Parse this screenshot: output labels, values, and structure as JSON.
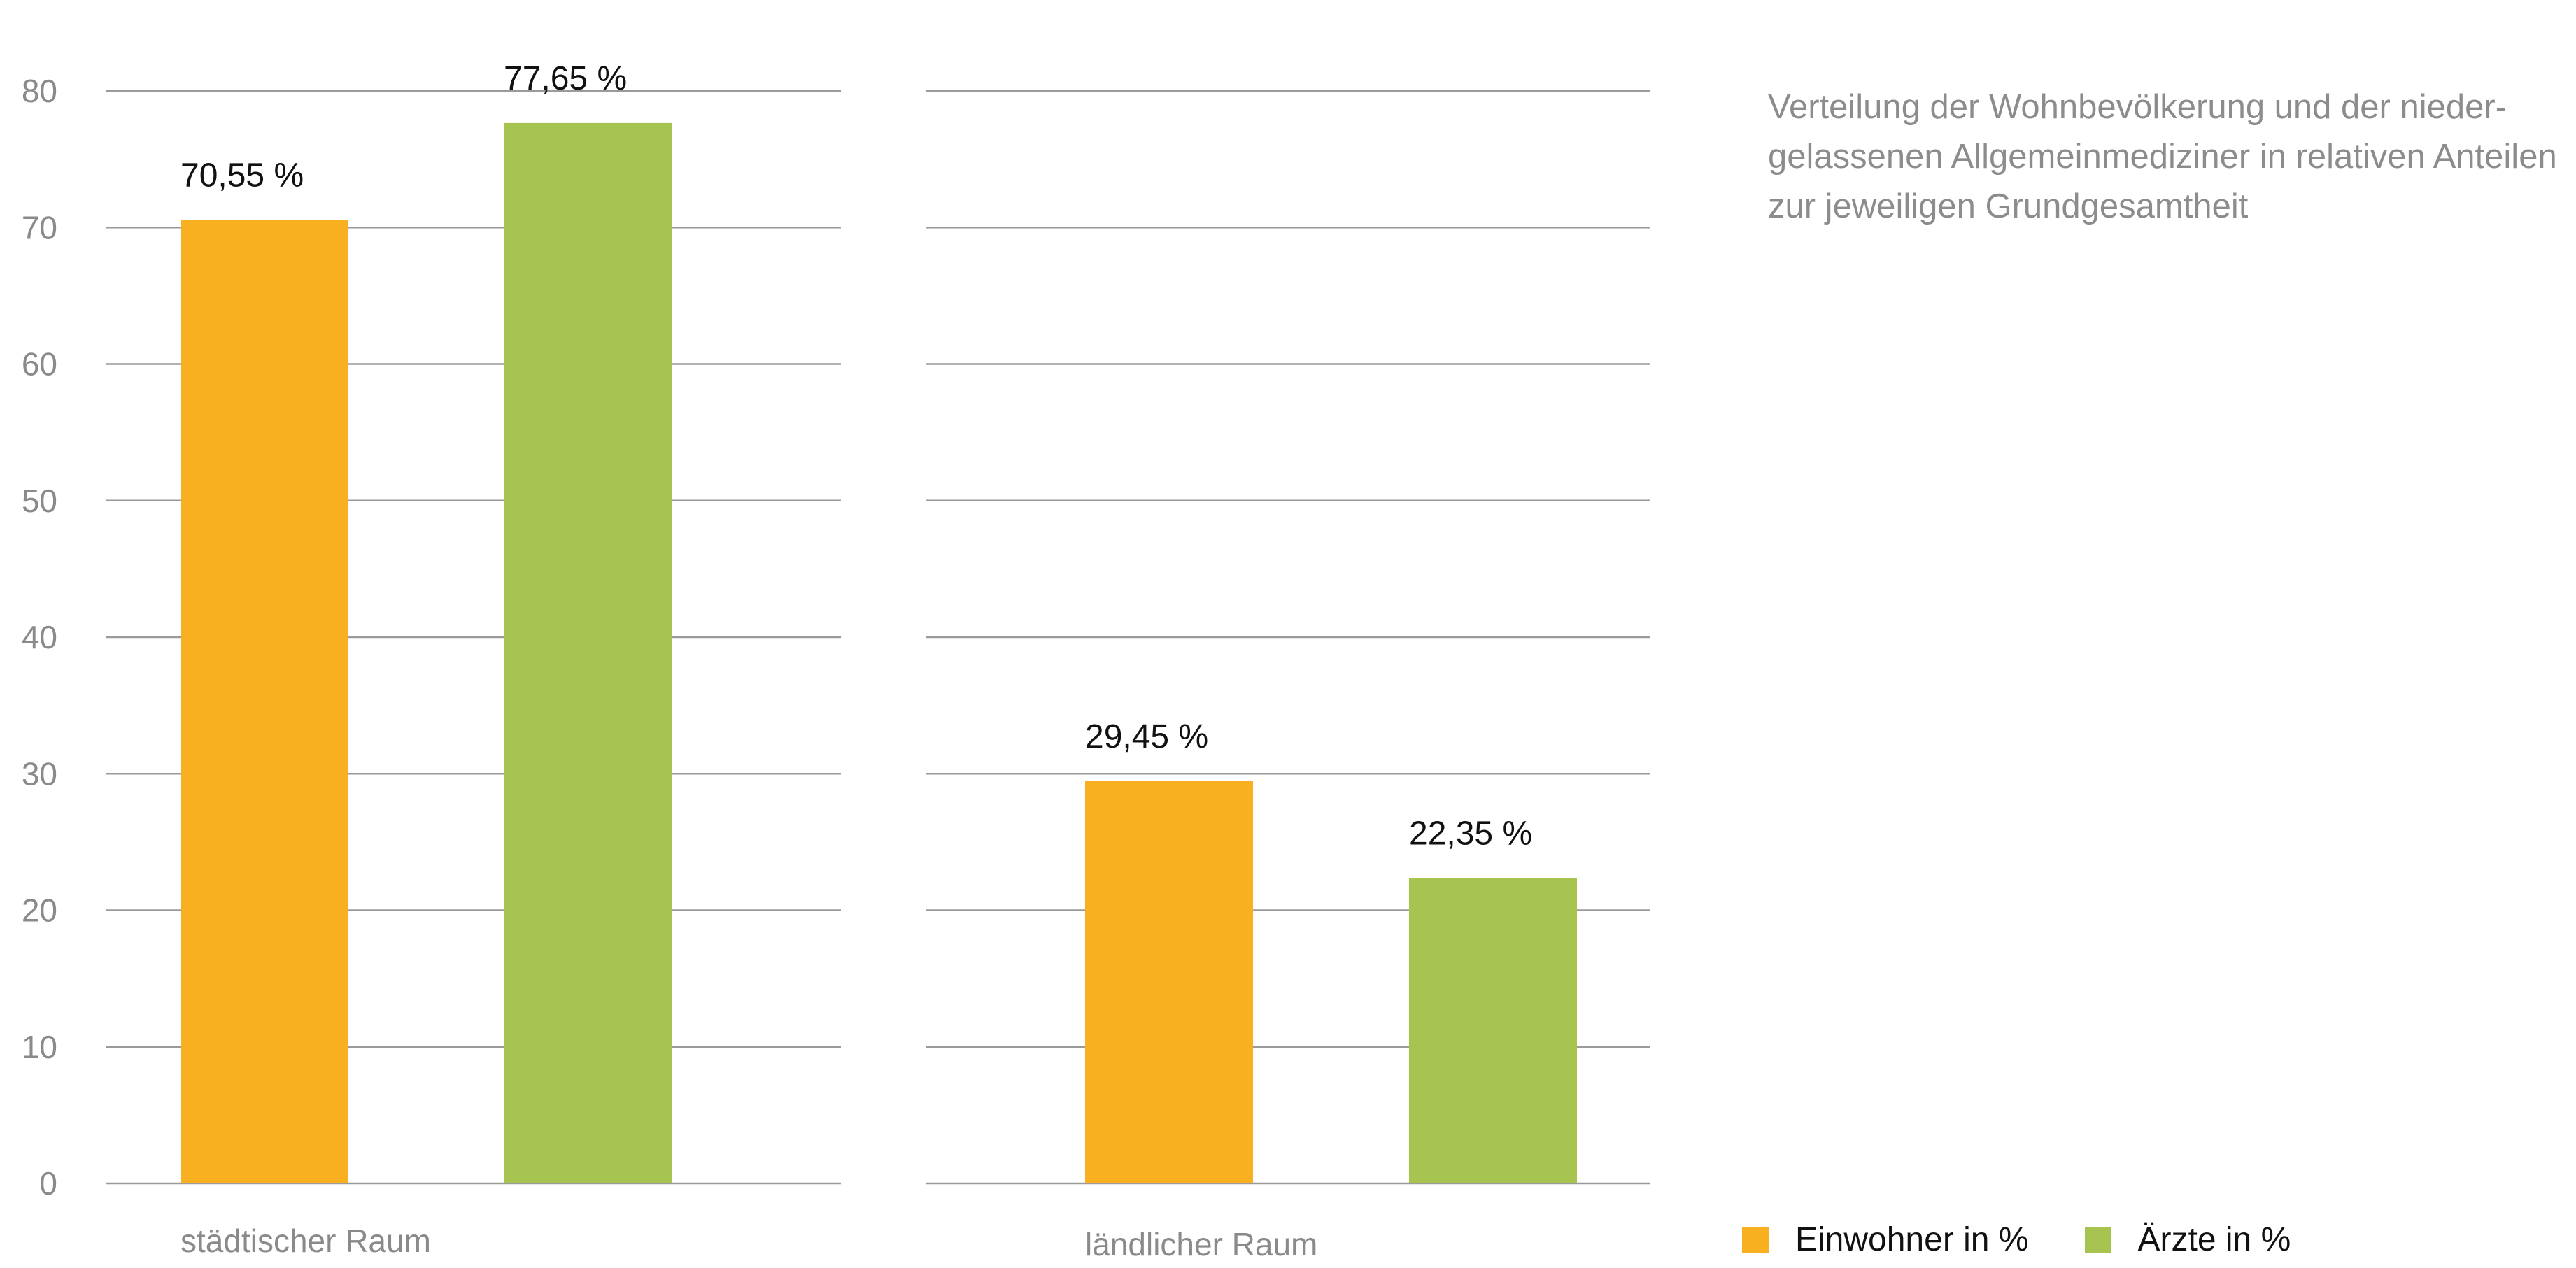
{
  "description": "Verteilung der Wohnbevölkerung und der nieder-\ngelassenen Allgemeinmediziner in relativen Anteilen\nzur jeweiligen Grundgesamtheit",
  "colors": {
    "einwohner": "#F8B020",
    "aerzte": "#A8C450",
    "grid": "#9A9A9A"
  },
  "chart_data": {
    "type": "bar",
    "title": "",
    "xlabel": "",
    "ylabel": "",
    "ylim": [
      0,
      80
    ],
    "yticks": [
      0,
      10,
      20,
      30,
      40,
      50,
      60,
      70,
      80
    ],
    "grid": true,
    "legend_position": "bottom-right",
    "categories": [
      "städtischer Raum",
      "ländlicher Raum"
    ],
    "series": [
      {
        "name": "Einwohner in %",
        "values": [
          70.55,
          29.45
        ],
        "labels": [
          "70,55 %",
          "29,45 %"
        ],
        "color": "#F8B020"
      },
      {
        "name": "Ärzte in %",
        "values": [
          77.65,
          22.35
        ],
        "labels": [
          "77,65 %",
          "22,35 %"
        ],
        "color": "#A8C450"
      }
    ]
  }
}
